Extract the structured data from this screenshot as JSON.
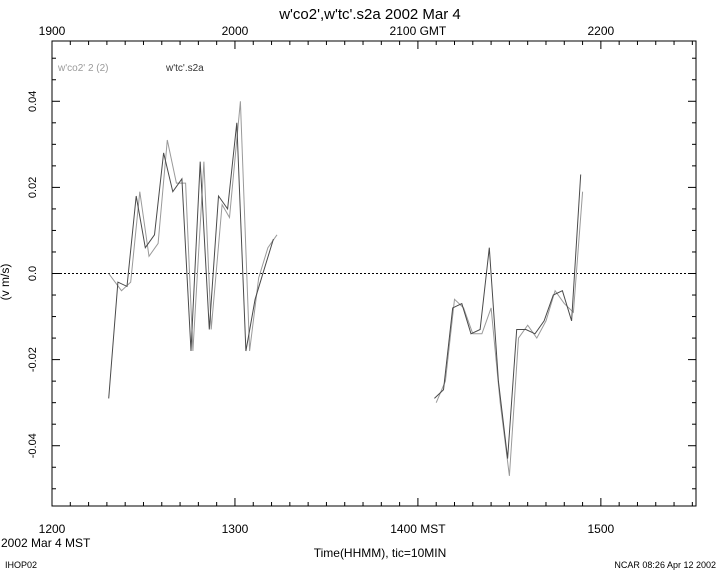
{
  "chart_data": {
    "type": "line",
    "title": "w'co2',w'tc'.s2a 2002 Mar 4",
    "xlabel": "Time(HHMM), tic=10MIN",
    "ylabel": "(v m/s)",
    "x_units": "minutes after 1200 MST",
    "xlim": [
      0,
      352
    ],
    "ylim": [
      -0.054,
      0.054
    ],
    "bottom_ticks": [
      "1200",
      "1300",
      "1400 MST",
      "1500"
    ],
    "bottom_tick_values": [
      0,
      100,
      200,
      300
    ],
    "top_ticks": [
      "1900",
      "2000",
      "2100 GMT",
      "2200"
    ],
    "top_tick_values": [
      0,
      100,
      200,
      300
    ],
    "y_ticks": [
      "-0.04",
      "-0.02",
      "0.0",
      "0.02",
      "0.04"
    ],
    "y_tick_values": [
      -0.04,
      -0.02,
      0.0,
      0.02,
      0.04
    ],
    "zero_line": true,
    "left_caption": "2002 Mar  4 MST",
    "bottom_left_caption": "IHOP02",
    "bottom_right_caption": "NCAR 08:26 Apr 12 2002",
    "series": [
      {
        "name": "w'co2'  2 (2)",
        "color": "#9a9a9a",
        "segments": [
          [
            [
              31,
              0.0
            ],
            [
              38,
              -0.004
            ],
            [
              43,
              -0.002
            ],
            [
              48,
              0.019
            ],
            [
              53,
              0.004
            ],
            [
              58,
              0.007
            ],
            [
              63,
              0.031
            ],
            [
              68,
              0.021
            ],
            [
              73,
              0.021
            ],
            [
              77,
              -0.018
            ],
            [
              83,
              0.026
            ],
            [
              87,
              -0.013
            ],
            [
              93,
              0.016
            ],
            [
              97,
              0.013
            ],
            [
              103,
              0.04
            ],
            [
              108,
              -0.018
            ],
            [
              113,
              -0.001
            ],
            [
              118,
              0.006
            ],
            [
              123,
              0.009
            ]
          ],
          [
            [
              210,
              -0.03
            ],
            [
              215,
              -0.025
            ],
            [
              220,
              -0.006
            ],
            [
              225,
              -0.008
            ],
            [
              230,
              -0.014
            ],
            [
              235,
              -0.014
            ],
            [
              240,
              -0.008
            ],
            [
              245,
              -0.03
            ],
            [
              250,
              -0.047
            ],
            [
              255,
              -0.015
            ],
            [
              260,
              -0.012
            ],
            [
              265,
              -0.015
            ],
            [
              270,
              -0.011
            ],
            [
              275,
              -0.004
            ],
            [
              280,
              -0.007
            ],
            [
              285,
              -0.009
            ],
            [
              290,
              0.019
            ]
          ]
        ]
      },
      {
        "name": "w'tc'.s2a",
        "color": "#4a4a4a",
        "segments": [
          [
            [
              31,
              -0.029
            ],
            [
              36,
              -0.002
            ],
            [
              41,
              -0.003
            ],
            [
              46,
              0.018
            ],
            [
              51,
              0.006
            ],
            [
              56,
              0.009
            ],
            [
              61,
              0.028
            ],
            [
              66,
              0.019
            ],
            [
              71,
              0.022
            ],
            [
              76,
              -0.018
            ],
            [
              81,
              0.026
            ],
            [
              86,
              -0.013
            ],
            [
              91,
              0.018
            ],
            [
              96,
              0.015
            ],
            [
              101,
              0.035
            ],
            [
              106,
              -0.018
            ],
            [
              111,
              -0.006
            ],
            [
              116,
              0.001
            ],
            [
              121,
              0.008
            ]
          ],
          [
            [
              209,
              -0.029
            ],
            [
              214,
              -0.027
            ],
            [
              219,
              -0.008
            ],
            [
              224,
              -0.007
            ],
            [
              229,
              -0.014
            ],
            [
              234,
              -0.013
            ],
            [
              239,
              0.006
            ],
            [
              244,
              -0.025
            ],
            [
              249,
              -0.043
            ],
            [
              254,
              -0.013
            ],
            [
              259,
              -0.013
            ],
            [
              264,
              -0.014
            ],
            [
              269,
              -0.011
            ],
            [
              274,
              -0.005
            ],
            [
              279,
              -0.004
            ],
            [
              284,
              -0.011
            ],
            [
              289,
              0.023
            ]
          ]
        ]
      }
    ]
  }
}
